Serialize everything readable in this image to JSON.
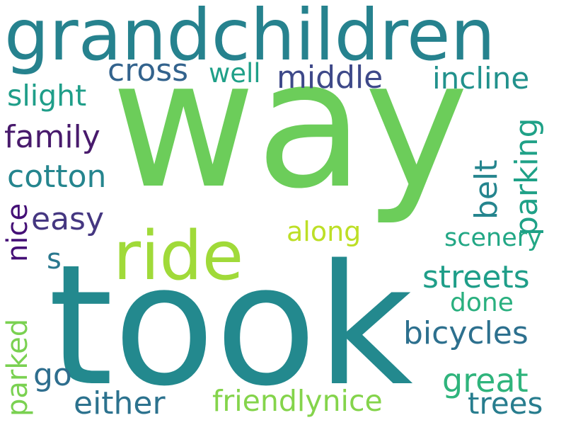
{
  "words": [
    {
      "id": "grandchildren",
      "text": "grandchildren",
      "color": "#26828e"
    },
    {
      "id": "way",
      "text": "way",
      "color": "#6ccd5a"
    },
    {
      "id": "took",
      "text": "took",
      "color": "#23898e"
    },
    {
      "id": "ride",
      "text": "ride",
      "color": "#a0da39"
    },
    {
      "id": "cross",
      "text": "cross",
      "color": "#33638d"
    },
    {
      "id": "well",
      "text": "well",
      "color": "#1fa088"
    },
    {
      "id": "middle",
      "text": "middle",
      "color": "#3e4989"
    },
    {
      "id": "incline",
      "text": "incline",
      "color": "#21918c"
    },
    {
      "id": "slight",
      "text": "slight",
      "color": "#1f9e89"
    },
    {
      "id": "family",
      "text": "family",
      "color": "#481a6c"
    },
    {
      "id": "cotton",
      "text": "cotton",
      "color": "#25858e"
    },
    {
      "id": "easy",
      "text": "easy",
      "color": "#453781"
    },
    {
      "id": "nice_vertical",
      "text": "nice",
      "color": "#440f76"
    },
    {
      "id": "s",
      "text": "s",
      "color": "#2a788e"
    },
    {
      "id": "belt",
      "text": "belt",
      "color": "#25858e"
    },
    {
      "id": "parking",
      "text": "parking",
      "color": "#1fa187"
    },
    {
      "id": "along",
      "text": "along",
      "color": "#bddf26"
    },
    {
      "id": "scenery",
      "text": "scenery",
      "color": "#22a785"
    },
    {
      "id": "streets",
      "text": "streets",
      "color": "#1f9e89"
    },
    {
      "id": "done",
      "text": "done",
      "color": "#2ab07f"
    },
    {
      "id": "parked",
      "text": "parked",
      "color": "#7ad151"
    },
    {
      "id": "bicycles",
      "text": "bicycles",
      "color": "#2d708e"
    },
    {
      "id": "go",
      "text": "go",
      "color": "#2e6e8e"
    },
    {
      "id": "great",
      "text": "great",
      "color": "#2fb47c"
    },
    {
      "id": "either",
      "text": "either",
      "color": "#2c728e"
    },
    {
      "id": "friendlynice",
      "text": "friendlynice",
      "color": "#84d44b"
    },
    {
      "id": "trees",
      "text": "trees",
      "color": "#287d8e"
    }
  ]
}
